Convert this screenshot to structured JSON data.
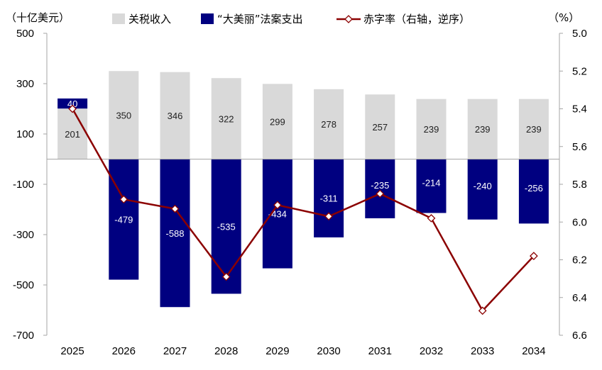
{
  "chart_data": {
    "type": "bar",
    "categories": [
      "2025",
      "2026",
      "2027",
      "2028",
      "2029",
      "2030",
      "2031",
      "2032",
      "2033",
      "2034"
    ],
    "series": [
      {
        "name": "关税收入",
        "kind": "bar",
        "axis": "left",
        "color": "#d9d9d9",
        "values": [
          201,
          350,
          346,
          322,
          299,
          278,
          257,
          239,
          239,
          239
        ],
        "labels": [
          "201",
          "350",
          "346",
          "322",
          "299",
          "278",
          "257",
          "239",
          "239",
          "239"
        ]
      },
      {
        "name": "“大美丽”法案支出",
        "kind": "bar",
        "axis": "left",
        "color": "#000080",
        "values": [
          40,
          -479,
          -588,
          -535,
          -434,
          -311,
          -235,
          -214,
          -240,
          -256
        ],
        "labels": [
          "40",
          "-479",
          "-588",
          "-535",
          "-434",
          "-311",
          "-235",
          "-214",
          "-240",
          "-256"
        ]
      },
      {
        "name": "赤字率（右轴，逆序）",
        "kind": "line",
        "axis": "right",
        "color": "#8b0000",
        "values": [
          5.4,
          5.88,
          5.93,
          6.29,
          5.91,
          5.97,
          5.85,
          5.98,
          6.47,
          6.18
        ]
      }
    ],
    "left_axis": {
      "unit": "（十亿美元）",
      "min": -700,
      "max": 500,
      "ticks": [
        500,
        300,
        100,
        -100,
        -300,
        -500,
        -700
      ],
      "tick_labels": [
        "500",
        "300",
        "100",
        "-100",
        "-300",
        "-500",
        "-700"
      ]
    },
    "right_axis": {
      "unit": "（%）",
      "min": 5.0,
      "max": 6.6,
      "reversed": true,
      "ticks": [
        5.0,
        5.2,
        5.4,
        5.6,
        5.8,
        6.0,
        6.2,
        6.4,
        6.6
      ],
      "tick_labels": [
        "5.0",
        "5.2",
        "5.4",
        "5.6",
        "5.8",
        "6.0",
        "6.2",
        "6.4",
        "6.6"
      ]
    },
    "legend": [
      "关税收入",
      "“大美丽”法案支出",
      "赤字率（右轴，逆序）"
    ],
    "grid": false
  }
}
